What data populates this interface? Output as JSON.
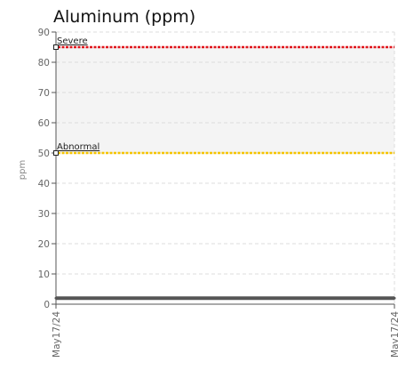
{
  "chart_data": {
    "type": "line",
    "title": "Aluminum (ppm)",
    "ylabel": "ppm",
    "xlabel": "",
    "ylim": [
      0,
      90
    ],
    "yticks": [
      0,
      10,
      20,
      30,
      40,
      50,
      60,
      70,
      80,
      90
    ],
    "x": [
      "May17/24",
      "May17/24"
    ],
    "grid": true,
    "series": [
      {
        "color": "#555555",
        "values": [
          2,
          2
        ]
      }
    ],
    "limits": [
      {
        "name": "Severe",
        "value": 85,
        "color": "#e0151b"
      },
      {
        "name": "Abnormal",
        "value": 50,
        "color": "#f5c400"
      }
    ],
    "bands": [
      {
        "from": 50,
        "to": 85,
        "color": "#f4f4f4"
      }
    ]
  }
}
